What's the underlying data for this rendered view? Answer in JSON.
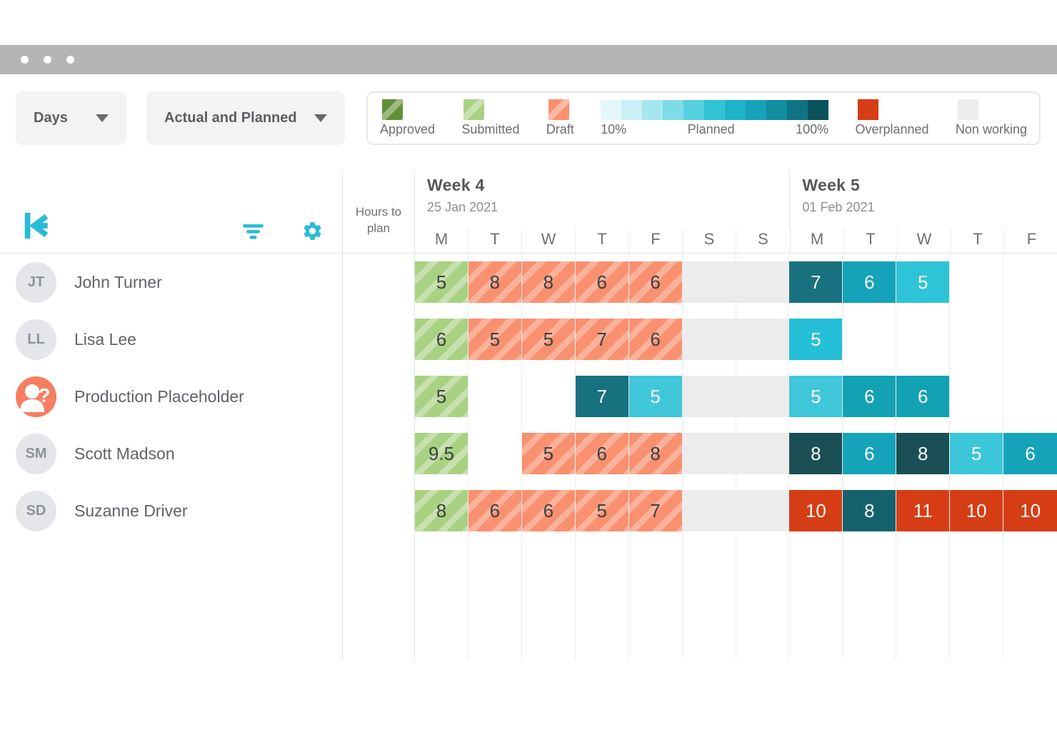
{
  "window": {
    "control_dots": 3
  },
  "toolbar": {
    "time_scale_dropdown": {
      "value": "Days"
    },
    "view_mode_dropdown": {
      "value": "Actual and Planned"
    }
  },
  "legend": {
    "items": [
      {
        "id": "approved",
        "label": "Approved",
        "swatch": "striped",
        "color": "#618f36"
      },
      {
        "id": "submitted",
        "label": "Submitted",
        "swatch": "striped",
        "color": "#a8d182"
      },
      {
        "id": "draft",
        "label": "Draft",
        "swatch": "striped",
        "color": "#f9906f"
      },
      {
        "id": "planned-gradient",
        "swatch": "gradient",
        "start_label": "10%",
        "mid_label": "Planned",
        "end_label": "100%",
        "colors": [
          "#e3f7fa",
          "#c8f0f5",
          "#a6e7ef",
          "#7edce8",
          "#57d0df",
          "#32c4d6",
          "#1db4ca",
          "#16a2b8",
          "#118da0",
          "#0e7384",
          "#0a525c"
        ]
      },
      {
        "id": "overplanned",
        "label": "Overplanned",
        "swatch": "solid",
        "color": "#d63d15"
      },
      {
        "id": "nonworking",
        "label": "Non working",
        "swatch": "solid",
        "color": "#ececec"
      }
    ]
  },
  "grid": {
    "hours_header": "Hours to plan",
    "weeks": [
      {
        "title": "Week 4",
        "date": "25 Jan 2021",
        "days": [
          "M",
          "T",
          "W",
          "T",
          "F",
          "S",
          "S"
        ]
      },
      {
        "title": "Week 5",
        "date": "01 Feb 2021",
        "days": [
          "M",
          "T",
          "W",
          "T",
          "F"
        ]
      }
    ],
    "rows": [
      {
        "name": "John Turner",
        "avatar_type": "photo",
        "cells": [
          {
            "value": "5",
            "type": "submitted"
          },
          {
            "value": "8",
            "type": "draft"
          },
          {
            "value": "8",
            "type": "draft"
          },
          {
            "value": "6",
            "type": "draft"
          },
          {
            "value": "6",
            "type": "draft"
          },
          {
            "type": "nonworking"
          },
          {
            "type": "nonworking"
          },
          {
            "value": "7",
            "type": "planned",
            "color": "#17717f"
          },
          {
            "value": "6",
            "type": "planned",
            "color": "#14a3b8"
          },
          {
            "value": "5",
            "type": "planned",
            "color": "#2fc3d8"
          },
          {
            "type": "empty"
          },
          {
            "type": "empty"
          }
        ]
      },
      {
        "name": "Lisa Lee",
        "avatar_type": "photo",
        "cells": [
          {
            "value": "6",
            "type": "submitted"
          },
          {
            "value": "5",
            "type": "draft"
          },
          {
            "value": "5",
            "type": "draft"
          },
          {
            "value": "7",
            "type": "draft"
          },
          {
            "value": "6",
            "type": "draft"
          },
          {
            "type": "nonworking"
          },
          {
            "type": "nonworking"
          },
          {
            "value": "5",
            "type": "planned",
            "color": "#25c0d7"
          },
          {
            "type": "empty"
          },
          {
            "type": "empty"
          },
          {
            "type": "empty"
          },
          {
            "type": "empty"
          }
        ]
      },
      {
        "name": "Production Placeholder",
        "avatar_type": "placeholder",
        "cells": [
          {
            "value": "5",
            "type": "submitted"
          },
          {
            "type": "empty"
          },
          {
            "type": "empty"
          },
          {
            "value": "7",
            "type": "planned",
            "color": "#17717f"
          },
          {
            "value": "5",
            "type": "planned",
            "color": "#40c7da"
          },
          {
            "type": "nonworking"
          },
          {
            "type": "nonworking"
          },
          {
            "value": "5",
            "type": "planned",
            "color": "#40c7da"
          },
          {
            "value": "6",
            "type": "planned",
            "color": "#12a2b4"
          },
          {
            "value": "6",
            "type": "planned",
            "color": "#12a2b4"
          },
          {
            "type": "empty"
          },
          {
            "type": "empty"
          }
        ]
      },
      {
        "name": "Scott Madson",
        "avatar_type": "photo",
        "cells": [
          {
            "value": "9.5",
            "type": "submitted"
          },
          {
            "type": "empty"
          },
          {
            "value": "5",
            "type": "draft"
          },
          {
            "value": "6",
            "type": "draft"
          },
          {
            "value": "8",
            "type": "draft"
          },
          {
            "type": "nonworking"
          },
          {
            "type": "nonworking"
          },
          {
            "value": "8",
            "type": "planned",
            "color": "#1b4f56"
          },
          {
            "value": "6",
            "type": "planned",
            "color": "#14a3b8"
          },
          {
            "value": "8",
            "type": "planned",
            "color": "#1b4f56"
          },
          {
            "value": "5",
            "type": "planned",
            "color": "#3bc6d9"
          },
          {
            "value": "6",
            "type": "planned",
            "color": "#14a3b8"
          }
        ]
      },
      {
        "name": "Suzanne Driver",
        "avatar_type": "photo",
        "cells": [
          {
            "value": "8",
            "type": "submitted"
          },
          {
            "value": "6",
            "type": "draft"
          },
          {
            "value": "6",
            "type": "draft"
          },
          {
            "value": "5",
            "type": "draft"
          },
          {
            "value": "7",
            "type": "draft"
          },
          {
            "type": "nonworking"
          },
          {
            "type": "nonworking"
          },
          {
            "value": "10",
            "type": "overplanned"
          },
          {
            "value": "8",
            "type": "planned",
            "color": "#15626d"
          },
          {
            "value": "11",
            "type": "overplanned"
          },
          {
            "value": "10",
            "type": "overplanned"
          },
          {
            "value": "10",
            "type": "overplanned"
          }
        ]
      }
    ]
  },
  "colors": {
    "accent": "#29bcd6",
    "overplanned": "#d63d15",
    "nonworking": "#ececec"
  }
}
